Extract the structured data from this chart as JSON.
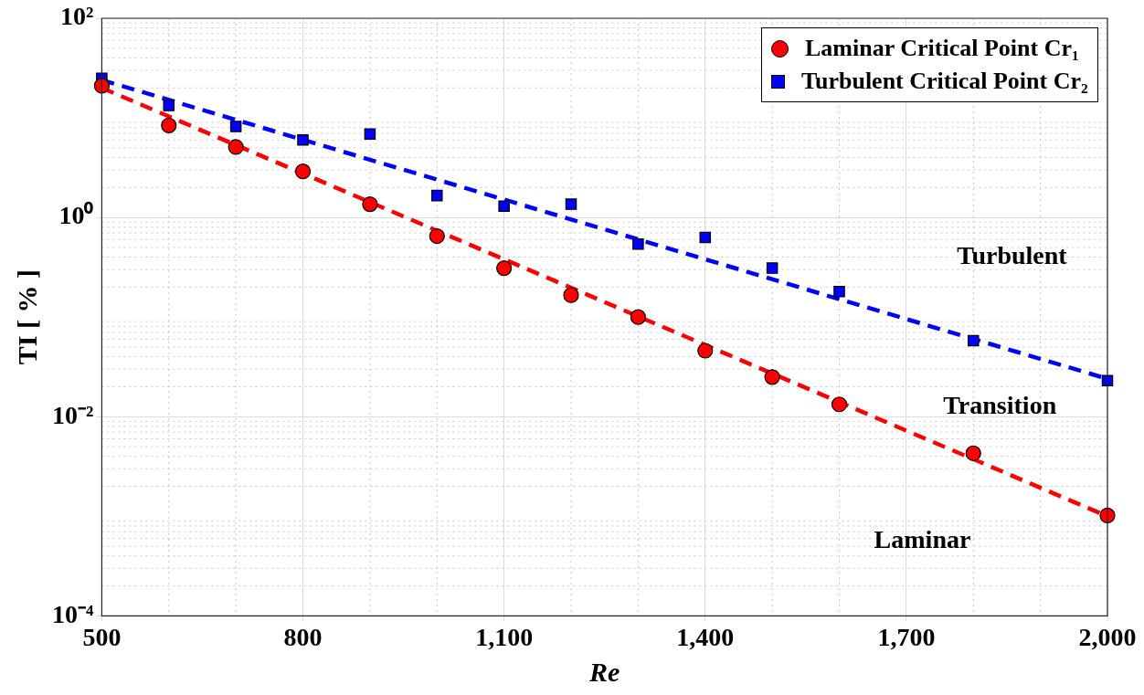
{
  "chart_data": {
    "type": "scatter",
    "xlabel": "Re",
    "ylabel": "TI [ % ]",
    "x": [
      500,
      600,
      700,
      800,
      900,
      1000,
      1100,
      1200,
      1300,
      1400,
      1500,
      1600,
      1800,
      2000
    ],
    "series": [
      {
        "name": "Laminar Critical Point Cr₁",
        "color": "#ff0000",
        "marker": "circle",
        "values": [
          21,
          8.4,
          5.1,
          2.9,
          1.36,
          0.65,
          0.31,
          0.166,
          0.1,
          0.046,
          0.025,
          0.0133,
          0.0043,
          0.00102
        ]
      },
      {
        "name": "Turbulent Critical Point Cr₂",
        "color": "#0000ff",
        "marker": "square",
        "values": [
          25,
          13.3,
          8.2,
          6.0,
          6.9,
          1.66,
          1.3,
          1.36,
          0.54,
          0.63,
          0.31,
          0.18,
          0.058,
          0.023
        ]
      },
      {
        "type": "line",
        "color": "#ff0000",
        "marker": "none",
        "line_style": "dashed",
        "values": [
          20,
          null,
          null,
          null,
          null,
          null,
          null,
          null,
          null,
          null,
          null,
          null,
          null,
          0.001
        ]
      },
      {
        "type": "line",
        "color": "#0000ff",
        "marker": "none",
        "line_style": "dashed",
        "values": [
          24,
          null,
          null,
          null,
          null,
          null,
          null,
          null,
          null,
          null,
          null,
          null,
          null,
          0.024
        ]
      }
    ],
    "xlim": [
      500,
      2000
    ],
    "xticks": [
      500,
      800,
      {
        "value": 1100,
        "label": "1,100"
      },
      {
        "value": 1400,
        "label": "1,400"
      },
      {
        "value": 1700,
        "label": "1,700"
      },
      {
        "value": 2000,
        "label": "2,000"
      }
    ],
    "ylim": [
      0.0001,
      100
    ],
    "yticks": [
      {
        "value": 0.0001,
        "label": "10⁻⁴"
      },
      {
        "value": 0.01,
        "label": "10⁻²"
      },
      {
        "value": 1,
        "label": "10⁰"
      },
      {
        "value": 100,
        "label": "10²"
      }
    ],
    "log": "y",
    "grid": true,
    "legend": "top right",
    "annotations": [
      "Turbulent",
      "Transition",
      "Laminar"
    ]
  }
}
